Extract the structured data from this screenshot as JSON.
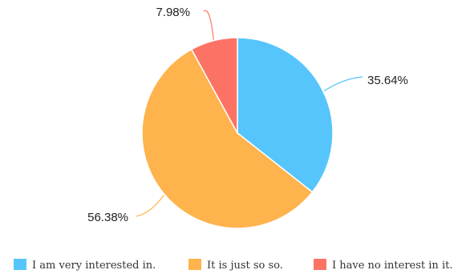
{
  "chart_data": {
    "type": "pie",
    "title": "",
    "legend_position": "bottom",
    "slices": [
      {
        "label": "I am very interested in.",
        "value": 35.64,
        "display": "35.64%",
        "color": "#56c5fb"
      },
      {
        "label": "It is just so so.",
        "value": 56.38,
        "display": "56.38%",
        "color": "#ffb34d"
      },
      {
        "label": "I have no interest in it.",
        "value": 7.98,
        "display": "7.98%",
        "color": "#fc7366"
      }
    ]
  }
}
